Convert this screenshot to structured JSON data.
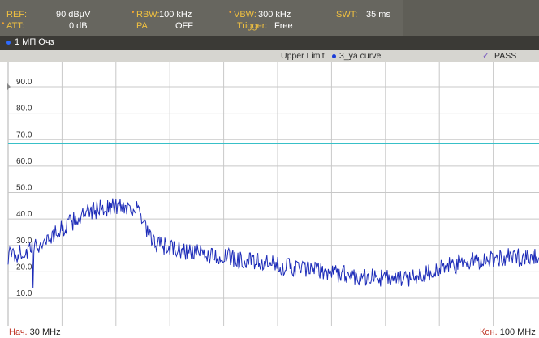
{
  "header": {
    "ref_label": "REF:",
    "ref_value": "90 dBµV",
    "att_label": "ATT:",
    "att_value": "0 dB",
    "rbw_label": "RBW:",
    "rbw_value": "100 kHz",
    "pa_label": "PA:",
    "pa_value": "OFF",
    "vbw_label": "VBW:",
    "vbw_value": "300 kHz",
    "trigger_label": "Trigger:",
    "trigger_value": "Free",
    "swt_label": "SWT:",
    "swt_value": "35 ms"
  },
  "trace_bar": {
    "label": "1 МП Очз"
  },
  "limit_bar": {
    "upper_limit": "Upper Limit",
    "curve_name": "3_ya curve",
    "status": "PASS"
  },
  "footer": {
    "start_prefix": "Нач.",
    "start_value": "30 MHz",
    "stop_prefix": "Кон.",
    "stop_value": "100 MHz"
  },
  "colors": {
    "trace": "#1c2bb8",
    "limit_line": "#38c0c8",
    "grid": "#c8c8c8"
  },
  "chart_data": {
    "type": "line",
    "x_start_mhz": 30,
    "x_stop_mhz": 100,
    "ylim": [
      0,
      95
    ],
    "y_ticks": [
      "90.0",
      "80.0",
      "70.0",
      "60.0",
      "50.0",
      "40.0",
      "30.0",
      "20.0",
      "10.0"
    ],
    "y_tick_values": [
      90,
      80,
      70,
      60,
      50,
      40,
      30,
      20,
      10
    ],
    "limit_line_value": 68.4,
    "grid": true,
    "trace_envelope": [
      [
        30,
        26
      ],
      [
        33,
        28
      ],
      [
        36,
        34
      ],
      [
        39,
        40
      ],
      [
        42,
        44
      ],
      [
        45,
        45
      ],
      [
        47,
        44
      ],
      [
        48,
        37
      ],
      [
        49,
        31
      ],
      [
        52,
        28.5
      ],
      [
        56,
        26.5
      ],
      [
        60,
        25
      ],
      [
        64,
        23
      ],
      [
        68,
        21.5
      ],
      [
        72,
        20
      ],
      [
        76,
        18.5
      ],
      [
        80,
        17.5
      ],
      [
        82,
        17
      ],
      [
        85,
        19.5
      ],
      [
        88,
        22
      ],
      [
        92,
        24.5
      ],
      [
        96,
        25.5
      ],
      [
        100,
        26
      ]
    ]
  }
}
